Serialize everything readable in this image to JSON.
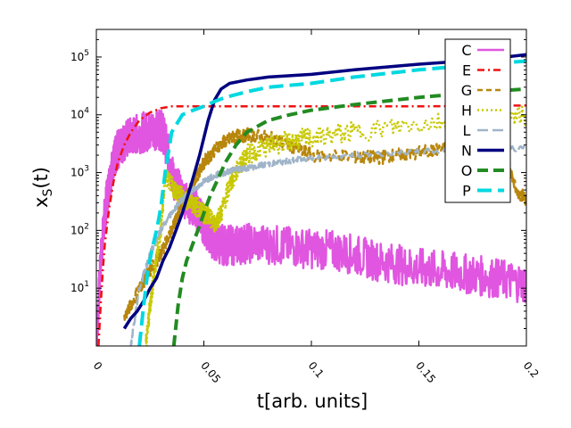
{
  "chart_data": {
    "type": "line",
    "xlabel": "t[arb. units]",
    "ylabel_main": "x",
    "ylabel_sub": "S",
    "ylabel_tail": "(t)",
    "y_scale": "log",
    "xlim": [
      0,
      0.2
    ],
    "ylim": [
      1,
      300000
    ],
    "x_ticks": [
      0,
      0.05,
      0.1,
      0.15,
      0.2
    ],
    "x_tick_labels": [
      "0",
      "0.05",
      "0.1",
      "0.15",
      "0.2"
    ],
    "y_ticks": [
      10,
      100,
      1000,
      10000,
      100000
    ],
    "y_tick_labels": [
      {
        "base": "10",
        "exp": "1"
      },
      {
        "base": "10",
        "exp": "2"
      },
      {
        "base": "10",
        "exp": "3"
      },
      {
        "base": "10",
        "exp": "4"
      },
      {
        "base": "10",
        "exp": "5"
      }
    ],
    "grid": false,
    "legend_position": "top-right",
    "series": [
      {
        "name": "C",
        "color": "#e056e0",
        "dash": "",
        "width": 2.5,
        "noise": 0.35,
        "x": [
          0,
          0.002,
          0.004,
          0.006,
          0.008,
          0.01,
          0.013,
          0.016,
          0.02,
          0.024,
          0.027,
          0.029,
          0.031,
          0.033,
          0.036,
          0.04,
          0.045,
          0.048,
          0.05,
          0.053,
          0.056,
          0.06,
          0.065,
          0.07,
          0.08,
          0.09,
          0.1,
          0.11,
          0.12,
          0.13,
          0.14,
          0.15,
          0.16,
          0.17,
          0.18,
          0.19,
          0.2
        ],
        "y": [
          1,
          30,
          200,
          700,
          1500,
          2500,
          3500,
          4200,
          4800,
          5200,
          5500,
          5600,
          5000,
          2500,
          700,
          400,
          250,
          200,
          120,
          80,
          60,
          55,
          55,
          60,
          58,
          52,
          48,
          45,
          38,
          30,
          26,
          22,
          20,
          18,
          16,
          14,
          12
        ]
      },
      {
        "name": "E",
        "color": "#ee1111",
        "dash": "8,4,2,4",
        "width": 2.5,
        "noise": 0,
        "x": [
          0.001,
          0.002,
          0.003,
          0.004,
          0.006,
          0.008,
          0.01,
          0.013,
          0.016,
          0.02,
          0.025,
          0.03,
          0.035,
          0.05,
          0.1,
          0.15,
          0.2
        ],
        "y": [
          1,
          5,
          20,
          60,
          250,
          700,
          1500,
          3000,
          5000,
          8000,
          11000,
          13000,
          14000,
          14000,
          14000,
          14000,
          14500
        ]
      },
      {
        "name": "G",
        "color": "#b8860b",
        "dash": "6,4",
        "width": 2.5,
        "noise": 0.12,
        "x": [
          0.013,
          0.02,
          0.025,
          0.03,
          0.035,
          0.038,
          0.042,
          0.046,
          0.05,
          0.055,
          0.06,
          0.065,
          0.07,
          0.08,
          0.09,
          0.1,
          0.12,
          0.13,
          0.14,
          0.15,
          0.16,
          0.17,
          0.18,
          0.19,
          0.195,
          0.2
        ],
        "y": [
          3,
          10,
          20,
          40,
          100,
          200,
          400,
          800,
          1500,
          2500,
          3500,
          4200,
          4500,
          4000,
          3000,
          2000,
          1900,
          1800,
          2000,
          2200,
          2500,
          3000,
          4000,
          3000,
          500,
          350
        ]
      },
      {
        "name": "H",
        "color": "#c8c800",
        "dash": "2,3",
        "width": 2.5,
        "noise": 0.18,
        "x": [
          0.023,
          0.025,
          0.027,
          0.03,
          0.032,
          0.035,
          0.038,
          0.041,
          0.044,
          0.047,
          0.05,
          0.052,
          0.055,
          0.058,
          0.062,
          0.066,
          0.07,
          0.08,
          0.09,
          0.1,
          0.12,
          0.15,
          0.18,
          0.2
        ],
        "y": [
          1,
          5,
          20,
          100,
          900,
          600,
          450,
          350,
          300,
          250,
          200,
          180,
          130,
          200,
          600,
          1200,
          2000,
          3000,
          3500,
          4000,
          5000,
          7000,
          8500,
          9500
        ]
      },
      {
        "name": "L",
        "color": "#9fb4c8",
        "dash": "12,5",
        "width": 2.5,
        "noise": 0.05,
        "x": [
          0.016,
          0.02,
          0.025,
          0.03,
          0.035,
          0.04,
          0.045,
          0.05,
          0.055,
          0.06,
          0.065,
          0.07,
          0.08,
          0.09,
          0.1,
          0.12,
          0.15,
          0.18,
          0.2
        ],
        "y": [
          1,
          10,
          40,
          100,
          200,
          350,
          500,
          700,
          900,
          1000,
          1150,
          1200,
          1400,
          1600,
          1800,
          2000,
          2300,
          2500,
          2600
        ]
      },
      {
        "name": "N",
        "color": "#000080",
        "dash": "",
        "width": 3.5,
        "noise": 0,
        "x": [
          0.013,
          0.016,
          0.019,
          0.022,
          0.025,
          0.028,
          0.031,
          0.034,
          0.037,
          0.04,
          0.044,
          0.048,
          0.052,
          0.055,
          0.058,
          0.062,
          0.07,
          0.08,
          0.1,
          0.12,
          0.15,
          0.18,
          0.2
        ],
        "y": [
          2,
          3,
          4,
          6,
          10,
          15,
          30,
          50,
          100,
          200,
          600,
          2000,
          8000,
          18000,
          28000,
          35000,
          40000,
          45000,
          50000,
          60000,
          75000,
          90000,
          110000
        ]
      },
      {
        "name": "O",
        "color": "#228b22",
        "dash": "12,6",
        "width": 4,
        "noise": 0,
        "x": [
          0.036,
          0.038,
          0.04,
          0.042,
          0.045,
          0.048,
          0.05,
          0.053,
          0.056,
          0.06,
          0.065,
          0.07,
          0.08,
          0.09,
          0.1,
          0.12,
          0.15,
          0.18,
          0.2
        ],
        "y": [
          1,
          5,
          15,
          30,
          60,
          120,
          200,
          400,
          700,
          1500,
          3000,
          5000,
          8000,
          10000,
          12000,
          15000,
          20000,
          25000,
          28000
        ]
      },
      {
        "name": "P",
        "color": "#00d8e0",
        "dash": "16,7",
        "width": 4,
        "noise": 0,
        "x": [
          0.02,
          0.022,
          0.024,
          0.026,
          0.028,
          0.03,
          0.032,
          0.035,
          0.04,
          0.045,
          0.05,
          0.055,
          0.06,
          0.07,
          0.08,
          0.1,
          0.12,
          0.15,
          0.18,
          0.2
        ],
        "y": [
          1,
          5,
          20,
          50,
          100,
          250,
          1000,
          5000,
          10000,
          12000,
          14000,
          17000,
          20000,
          25000,
          30000,
          35000,
          45000,
          60000,
          75000,
          85000
        ]
      }
    ]
  }
}
